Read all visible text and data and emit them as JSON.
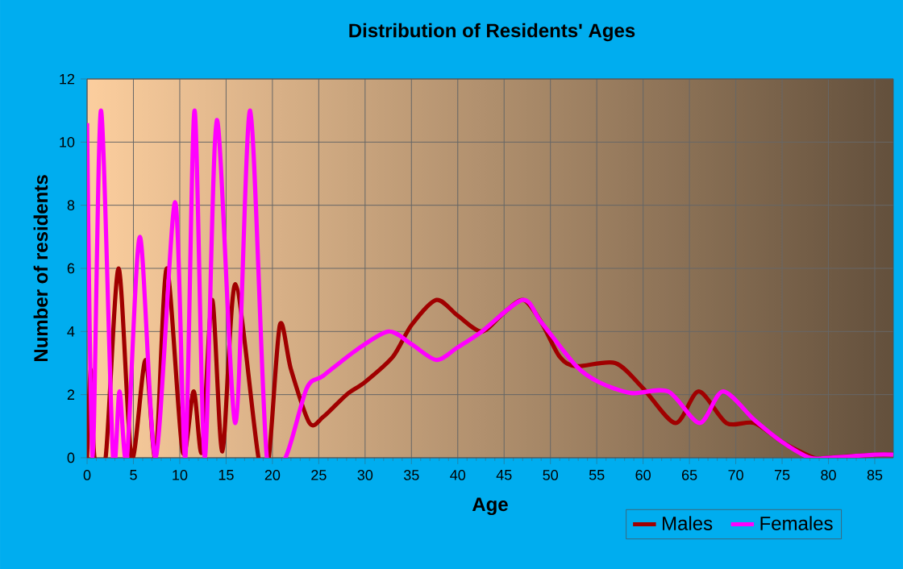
{
  "chart_data": {
    "type": "line",
    "title": "Distribution of Residents' Ages",
    "xlabel": "Age",
    "ylabel": "Number of residents",
    "xlim": [
      0,
      87
    ],
    "ylim": [
      0,
      12
    ],
    "xticks": [
      0,
      5,
      10,
      15,
      20,
      25,
      30,
      35,
      40,
      45,
      50,
      55,
      60,
      65,
      70,
      75,
      80,
      85
    ],
    "yticks": [
      0,
      2,
      4,
      6,
      8,
      10,
      12
    ],
    "grid": true,
    "legend": "bottom right",
    "marker": "none",
    "line_style": "solid",
    "series": [
      {
        "name": "Males",
        "color": "#a00000",
        "x": [
          0,
          0.4,
          0.8,
          2,
          3.4,
          4.8,
          6.3,
          7.4,
          8.6,
          10.3,
          11.5,
          12.4,
          13.5,
          14.6,
          16,
          18.5,
          19.6,
          20.8,
          22,
          24,
          25.5,
          28,
          30,
          33,
          35,
          37.7,
          40,
          42.6,
          45,
          47.1,
          49,
          51,
          52.8,
          57,
          60,
          63.5,
          66,
          69,
          72,
          75,
          78.4,
          80,
          85,
          87
        ],
        "values": [
          0,
          2.8,
          0,
          0,
          6,
          0,
          3.1,
          0,
          6,
          0.2,
          2.1,
          0.2,
          5,
          0.2,
          5.5,
          0,
          0,
          4.2,
          2.8,
          1.1,
          1.3,
          2,
          2.4,
          3.2,
          4.2,
          5,
          4.5,
          4,
          4.6,
          5,
          4.3,
          3.2,
          2.9,
          3,
          2.2,
          1.1,
          2.1,
          1.1,
          1.1,
          0.5,
          0,
          0,
          0.1,
          0.1
        ]
      },
      {
        "name": "Females",
        "color": "#ff00ff",
        "x": [
          0,
          0.6,
          1.5,
          2.8,
          3.5,
          4.3,
          5.7,
          7.4,
          9.5,
          10.6,
          11.6,
          12.7,
          14,
          16,
          17.6,
          19.4,
          21.4,
          23.7,
          25.5,
          29,
          32.5,
          35,
          37.7,
          40,
          42.6,
          47,
          49,
          52.8,
          55.2,
          58.7,
          62.7,
          66.1,
          68.6,
          72,
          75,
          78,
          80,
          85,
          87
        ],
        "values": [
          10.6,
          0,
          11,
          0,
          2.1,
          0,
          7,
          0,
          8.1,
          0,
          11,
          0,
          10.7,
          1.1,
          11,
          0,
          0,
          2.2,
          2.6,
          3.4,
          4,
          3.6,
          3.1,
          3.5,
          4,
          5,
          4.3,
          2.9,
          2.4,
          2.05,
          2.1,
          1.1,
          2.1,
          1.2,
          0.5,
          0,
          0,
          0.1,
          0.1
        ]
      }
    ]
  }
}
